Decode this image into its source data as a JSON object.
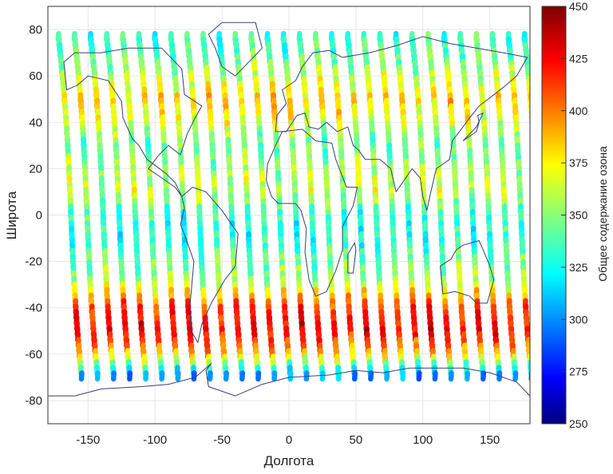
{
  "chart_data": {
    "type": "scatter",
    "title": "",
    "xlabel": "Долгота",
    "ylabel": "Широта",
    "xlim": [
      -180,
      180
    ],
    "ylim": [
      -90,
      90
    ],
    "xticks": [
      -150,
      -100,
      -50,
      0,
      50,
      100,
      150
    ],
    "yticks": [
      80,
      60,
      40,
      20,
      0,
      -20,
      -40,
      -60,
      -80
    ],
    "grid": true,
    "colorbar": {
      "label": "Общее содержание озона",
      "min": 250,
      "max": 450,
      "ticks": [
        450,
        425,
        400,
        375,
        350,
        325,
        300,
        275,
        250
      ],
      "colormap": "jet"
    },
    "swath_start_longitudes": [
      -178,
      -166,
      -154,
      -142,
      -130,
      -118,
      -106,
      -94,
      -82,
      -70,
      -58,
      -46,
      -34,
      -22,
      -10,
      2,
      14,
      26,
      38,
      50,
      62,
      74,
      86,
      98,
      110,
      122,
      134,
      146,
      158,
      170
    ],
    "ozone_by_latitude": {
      "latitudes": [
        80,
        70,
        60,
        50,
        40,
        30,
        20,
        10,
        0,
        -10,
        -20,
        -30,
        -40,
        -50,
        -60,
        -70
      ],
      "values": [
        335,
        340,
        360,
        385,
        370,
        345,
        355,
        365,
        335,
        330,
        345,
        360,
        415,
        430,
        390,
        300
      ]
    },
    "basemap": "world coastlines"
  }
}
